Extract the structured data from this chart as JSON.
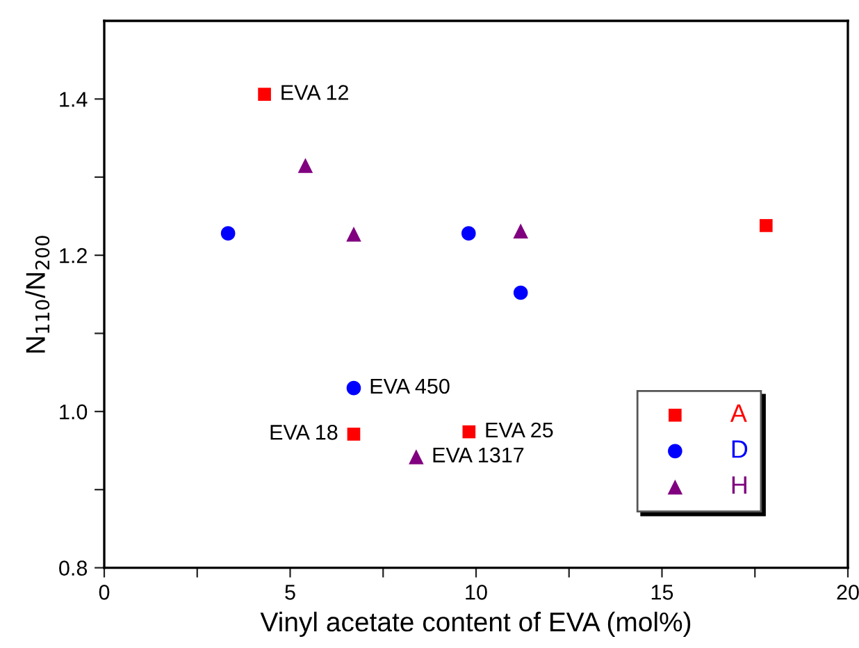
{
  "chart_data": {
    "type": "scatter",
    "xlabel": "Vinyl acetate content of EVA (mol%)",
    "ylabel": "N$_{110}$/N$_{200}$",
    "xlim": [
      0,
      20
    ],
    "ylim": [
      0.8,
      1.5
    ],
    "xticks": [
      0,
      {
        "value": 2.5,
        "label": null
      },
      5,
      {
        "value": 7.5,
        "label": null
      },
      10,
      {
        "value": 12.5,
        "label": null
      },
      15,
      {
        "value": 17.5,
        "label": null
      },
      20
    ],
    "yticks": [
      0.8,
      {
        "value": 0.9,
        "label": null
      },
      {
        "value": 1.0,
        "label": "1.0"
      },
      {
        "value": 1.1,
        "label": null
      },
      1.2,
      {
        "value": 1.3,
        "label": null
      },
      1.4
    ],
    "series": [
      {
        "name": "A",
        "color": "#ff0000",
        "marker": "square",
        "x": [
          4.31,
          6.71,
          9.81,
          17.8
        ],
        "values": [
          1.406,
          0.971,
          0.974,
          1.238
        ]
      },
      {
        "name": "D",
        "color": "#0000ff",
        "marker": "circle",
        "x": [
          3.33,
          6.71,
          9.8,
          11.2
        ],
        "values": [
          1.228,
          1.03,
          1.228,
          1.152
        ]
      },
      {
        "name": "H",
        "color": "#800080",
        "marker": "triangle",
        "x": [
          5.41,
          6.71,
          8.39,
          11.2
        ],
        "values": [
          1.315,
          1.227,
          0.942,
          1.231
        ]
      }
    ],
    "annotations": [
      {
        "text": "EVA 12",
        "x": 4.31,
        "y": 1.406
      },
      {
        "text": "EVA 18",
        "x": 6.71,
        "y": 0.971
      },
      {
        "text": "EVA 25",
        "x": 9.81,
        "y": 0.974
      },
      {
        "text": "EVA 1317",
        "x": 8.39,
        "y": 0.942
      },
      {
        "text": "EVA 450",
        "x": 6.71,
        "y": 1.03
      }
    ],
    "grid": false,
    "legend": "bottom right"
  }
}
